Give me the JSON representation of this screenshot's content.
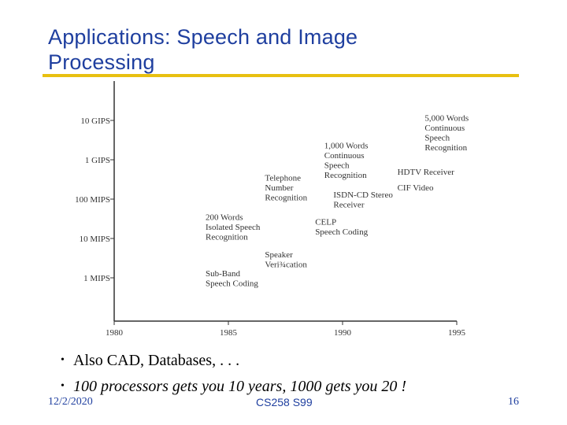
{
  "slide": {
    "title_line1": "Applications: Speech and Image",
    "title_line2": "Processing",
    "bullets": [
      "Also CAD, Databases, . . .",
      "100 processors gets you 10 years, 1000 gets you 20 !"
    ],
    "footer": {
      "date": "12/2/2020",
      "course": "CS258 S99",
      "page": "16"
    },
    "colors": {
      "title": "#1f3f9f",
      "rule": "#e8c010",
      "chart_ink": "#333333"
    }
  },
  "chart_data": {
    "type": "scatter",
    "title": "",
    "xlabel": "",
    "ylabel": "",
    "x_ticks": [
      1980,
      1985,
      1990,
      1995
    ],
    "xlim": [
      1980,
      1995
    ],
    "y_ticks": [
      "1 MIPS",
      "10 MIPS",
      "100 MIPS",
      "1 GIPS",
      "10 GIPS"
    ],
    "y_scale": "log",
    "grid": false,
    "annotations": [
      {
        "lines": [
          "Sub-Band",
          "Speech Coding"
        ],
        "x": 1984,
        "y": "1 MIPS"
      },
      {
        "lines": [
          "200 Words",
          "Isolated Speech",
          "Recognition"
        ],
        "x": 1984,
        "y": "20 MIPS"
      },
      {
        "lines": [
          "Speaker",
          "Veri¾cation"
        ],
        "x": 1986.6,
        "y": "3 MIPS"
      },
      {
        "lines": [
          "Telephone",
          "Number",
          "Recognition"
        ],
        "x": 1986.6,
        "y": "200 MIPS"
      },
      {
        "lines": [
          "CELP",
          "Speech Coding"
        ],
        "x": 1988.8,
        "y": "20 MIPS"
      },
      {
        "lines": [
          "1,000 Words",
          "Continuous",
          "Speech",
          "Recognition"
        ],
        "x": 1989.2,
        "y": "1 GIPS"
      },
      {
        "lines": [
          "ISDN-CD Stereo",
          "Receiver"
        ],
        "x": 1989.6,
        "y": "100 MIPS"
      },
      {
        "lines": [
          "HDTV Receiver"
        ],
        "x": 1992.4,
        "y": "500 MIPS"
      },
      {
        "lines": [
          "CIF Video"
        ],
        "x": 1992.4,
        "y": "200 MIPS"
      },
      {
        "lines": [
          "5,000 Words",
          "Continuous",
          "Speech",
          "Recognition"
        ],
        "x": 1993.6,
        "y": "5 GIPS"
      }
    ]
  }
}
